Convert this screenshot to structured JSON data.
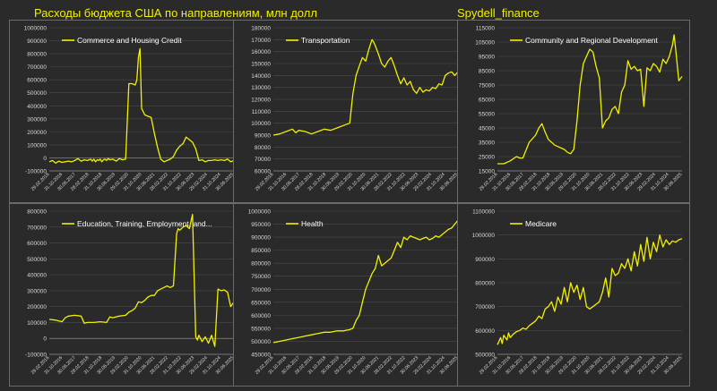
{
  "page": {
    "title": "Расходы бюджета США по направлениям, млн долл",
    "brand": "Spydell_finance"
  },
  "style": {
    "background": "#2a2a2a",
    "line_color": "#f1f100",
    "text_color": "#d8d8d8",
    "grid_color": "#4a4a4a",
    "border_color": "#6b6b6b"
  },
  "chart_data": [
    {
      "type": "line",
      "title": "Commerce and Housing Credit",
      "legend": "top-left",
      "ylim": [
        -100000,
        1000000
      ],
      "yticks": [
        -100000,
        0,
        100000,
        200000,
        300000,
        400000,
        500000,
        600000,
        700000,
        800000,
        900000,
        1000000
      ],
      "xticks": [
        "29.02.2016",
        "31.10.2016",
        "30.06.2017",
        "28.02.2018",
        "31.10.2018",
        "30.06.2019",
        "29.02.2020",
        "31.10.2020",
        "30.06.2021",
        "28.02.2022",
        "31.10.2022",
        "30.06.2023",
        "29.02.2024",
        "31.10.2024",
        "30.06.2025"
      ],
      "x": [
        0,
        2,
        4,
        6,
        8,
        10,
        12,
        14,
        16,
        18,
        20,
        22,
        24,
        26,
        27,
        28,
        29,
        30,
        31,
        32,
        33,
        34,
        35,
        36,
        37,
        38,
        40,
        42,
        44,
        46,
        48,
        50,
        52,
        54,
        55,
        56,
        57,
        58,
        60,
        62,
        64,
        66,
        68,
        70,
        72,
        74,
        76,
        78,
        80,
        82,
        84,
        86,
        88,
        90,
        92,
        94,
        96,
        98,
        100,
        102,
        104,
        106,
        108,
        110,
        112,
        114,
        116
      ],
      "y": [
        -30000,
        -20000,
        -40000,
        -25000,
        -35000,
        -30000,
        -25000,
        -30000,
        -20000,
        -5000,
        -25000,
        -15000,
        -20000,
        -10000,
        -25000,
        -10000,
        -30000,
        -15000,
        -20000,
        -10000,
        -30000,
        -15000,
        -10000,
        -20000,
        -5000,
        -15000,
        -10000,
        -25000,
        -5000,
        -15000,
        -10000,
        570000,
        570000,
        560000,
        600000,
        770000,
        840000,
        380000,
        330000,
        320000,
        310000,
        190000,
        80000,
        -10000,
        -30000,
        -20000,
        -10000,
        10000,
        60000,
        90000,
        110000,
        160000,
        140000,
        120000,
        70000,
        -20000,
        -15000,
        -30000,
        -20000,
        -20000,
        -15000,
        -20000,
        -15000,
        -20000,
        -10000,
        -30000,
        -20000
      ]
    },
    {
      "type": "line",
      "title": "Transportation",
      "legend": "top-left",
      "ylim": [
        60000,
        180000
      ],
      "yticks": [
        60000,
        70000,
        80000,
        90000,
        100000,
        110000,
        120000,
        130000,
        140000,
        150000,
        160000,
        170000,
        180000
      ],
      "xticks": [
        "29.02.2016",
        "31.10.2016",
        "30.06.2017",
        "28.02.2018",
        "31.10.2018",
        "30.06.2019",
        "29.02.2020",
        "31.10.2020",
        "30.06.2021",
        "28.02.2022",
        "31.10.2022",
        "30.06.2023",
        "29.02.2024",
        "31.10.2024",
        "30.06.2025"
      ],
      "x": [
        0,
        4,
        8,
        12,
        14,
        16,
        20,
        24,
        28,
        32,
        36,
        40,
        44,
        48,
        50,
        52,
        54,
        56,
        58,
        60,
        62,
        63,
        64,
        66,
        68,
        70,
        72,
        74,
        76,
        78,
        80,
        82,
        84,
        86,
        88,
        90,
        92,
        94,
        96,
        98,
        100,
        102,
        104,
        106,
        108,
        110,
        112,
        114,
        116
      ],
      "y": [
        90000,
        91000,
        93000,
        95000,
        92000,
        94000,
        93000,
        91000,
        93000,
        95000,
        94000,
        96000,
        98000,
        100000,
        125000,
        140000,
        148000,
        155000,
        152000,
        162000,
        170000,
        168000,
        165000,
        158000,
        150000,
        147000,
        152000,
        155000,
        148000,
        140000,
        133000,
        138000,
        132000,
        135000,
        128000,
        125000,
        130000,
        126000,
        128000,
        127000,
        130000,
        129000,
        133000,
        132000,
        140000,
        142000,
        143000,
        140000,
        143000
      ]
    },
    {
      "type": "line",
      "title": "Community and Regional Development",
      "legend": "top-left",
      "ylim": [
        15000,
        115000
      ],
      "yticks": [
        15000,
        25000,
        35000,
        45000,
        55000,
        65000,
        75000,
        85000,
        95000,
        105000,
        115000
      ],
      "xticks": [
        "29.02.2016",
        "31.10.2016",
        "30.06.2017",
        "28.02.2018",
        "31.10.2018",
        "30.06.2019",
        "29.02.2020",
        "31.10.2020",
        "30.06.2021",
        "28.02.2022",
        "31.10.2022",
        "30.06.2023",
        "29.02.2024",
        "31.10.2024",
        "30.06.2025"
      ],
      "x": [
        0,
        4,
        8,
        12,
        14,
        16,
        20,
        24,
        26,
        28,
        30,
        32,
        34,
        36,
        38,
        40,
        42,
        44,
        46,
        48,
        50,
        52,
        54,
        56,
        58,
        60,
        62,
        64,
        66,
        68,
        70,
        72,
        74,
        76,
        78,
        80,
        82,
        84,
        86,
        88,
        90,
        92,
        94,
        96,
        98,
        100,
        102,
        104,
        106,
        108,
        110,
        111,
        112,
        114,
        116
      ],
      "y": [
        20000,
        20000,
        22000,
        25000,
        24000,
        24000,
        35000,
        40000,
        45000,
        48000,
        42000,
        37000,
        35000,
        33000,
        32000,
        31000,
        30000,
        28000,
        27000,
        30000,
        50000,
        75000,
        90000,
        95000,
        100000,
        98000,
        88000,
        80000,
        45000,
        50000,
        52000,
        58000,
        60000,
        55000,
        70000,
        75000,
        92000,
        86000,
        88000,
        85000,
        86000,
        60000,
        87000,
        85000,
        90000,
        88000,
        84000,
        93000,
        90000,
        95000,
        103000,
        110000,
        100000,
        78000,
        81000
      ]
    },
    {
      "type": "line",
      "title": "Education, Training, Employment, and...",
      "legend": "top-left",
      "ylim": [
        -100000,
        800000
      ],
      "yticks": [
        -100000,
        0,
        100000,
        200000,
        300000,
        400000,
        500000,
        600000,
        700000,
        800000
      ],
      "xticks": [
        "29.02.2016",
        "31.10.2016",
        "30.06.2017",
        "28.02.2018",
        "31.10.2018",
        "30.06.2019",
        "29.02.2020",
        "31.10.2020",
        "30.06.2021",
        "28.02.2022",
        "31.10.2022",
        "30.06.2023",
        "29.02.2024",
        "31.10.2024",
        "30.06.2025"
      ],
      "x": [
        0,
        4,
        8,
        10,
        12,
        16,
        20,
        22,
        24,
        28,
        32,
        36,
        38,
        40,
        44,
        48,
        50,
        52,
        54,
        56,
        58,
        60,
        62,
        64,
        66,
        68,
        70,
        72,
        74,
        76,
        78,
        80,
        81,
        82,
        84,
        86,
        88,
        90,
        92,
        93,
        94,
        96,
        98,
        100,
        102,
        104,
        106,
        108,
        110,
        112,
        114,
        116
      ],
      "y": [
        120000,
        115000,
        105000,
        130000,
        140000,
        145000,
        140000,
        95000,
        100000,
        100000,
        105000,
        100000,
        135000,
        130000,
        140000,
        145000,
        165000,
        175000,
        190000,
        230000,
        225000,
        240000,
        260000,
        270000,
        270000,
        300000,
        310000,
        320000,
        330000,
        320000,
        330000,
        660000,
        690000,
        680000,
        700000,
        710000,
        690000,
        780000,
        10000,
        -10000,
        20000,
        -20000,
        10000,
        -30000,
        20000,
        -50000,
        310000,
        300000,
        305000,
        290000,
        200000,
        230000
      ]
    },
    {
      "type": "line",
      "title": "Health",
      "legend": "top-left",
      "ylim": [
        450000,
        1000000
      ],
      "yticks": [
        450000,
        500000,
        550000,
        600000,
        650000,
        700000,
        750000,
        800000,
        850000,
        900000,
        950000,
        1000000
      ],
      "xticks": [
        "29.02.2016",
        "31.10.2016",
        "30.06.2017",
        "28.02.2018",
        "31.10.2018",
        "30.06.2019",
        "29.02.2020",
        "31.10.2020",
        "30.06.2021",
        "28.02.2022",
        "31.10.2022",
        "30.06.2023",
        "29.02.2024",
        "31.10.2024",
        "30.06.2025"
      ],
      "x": [
        0,
        4,
        8,
        12,
        16,
        20,
        24,
        28,
        32,
        36,
        40,
        44,
        48,
        50,
        52,
        54,
        56,
        58,
        60,
        62,
        64,
        66,
        68,
        70,
        72,
        74,
        76,
        78,
        80,
        82,
        84,
        86,
        88,
        90,
        92,
        94,
        96,
        98,
        100,
        102,
        104,
        106,
        108,
        110,
        112,
        114,
        116
      ],
      "y": [
        495000,
        500000,
        505000,
        510000,
        515000,
        520000,
        525000,
        530000,
        535000,
        535000,
        540000,
        540000,
        545000,
        550000,
        580000,
        600000,
        650000,
        700000,
        730000,
        760000,
        780000,
        830000,
        790000,
        800000,
        810000,
        820000,
        850000,
        880000,
        860000,
        900000,
        890000,
        905000,
        900000,
        895000,
        890000,
        895000,
        900000,
        890000,
        895000,
        905000,
        900000,
        910000,
        920000,
        930000,
        935000,
        950000,
        965000
      ]
    },
    {
      "type": "line",
      "title": "Medicare",
      "legend": "top-left",
      "ylim": [
        500000,
        1100000
      ],
      "yticks": [
        500000,
        600000,
        700000,
        800000,
        900000,
        1000000,
        1100000
      ],
      "xticks": [
        "29.02.2016",
        "31.10.2016",
        "30.06.2017",
        "28.02.2018",
        "31.10.2018",
        "30.06.2019",
        "29.02.2020",
        "31.10.2020",
        "30.06.2021",
        "28.02.2022",
        "31.10.2022",
        "30.06.2023",
        "29.02.2024",
        "31.10.2024",
        "30.06.2025"
      ],
      "x": [
        0,
        2,
        3,
        4,
        6,
        7,
        8,
        10,
        12,
        14,
        16,
        18,
        20,
        22,
        24,
        26,
        28,
        30,
        32,
        34,
        36,
        38,
        40,
        42,
        44,
        46,
        48,
        50,
        52,
        54,
        56,
        58,
        60,
        62,
        64,
        66,
        68,
        70,
        72,
        74,
        76,
        78,
        80,
        82,
        84,
        86,
        88,
        90,
        92,
        94,
        96,
        98,
        100,
        102,
        104,
        106,
        108,
        110,
        112,
        114,
        116
      ],
      "y": [
        540000,
        570000,
        545000,
        580000,
        560000,
        590000,
        570000,
        585000,
        595000,
        600000,
        610000,
        605000,
        620000,
        630000,
        640000,
        660000,
        650000,
        690000,
        700000,
        720000,
        680000,
        740000,
        710000,
        780000,
        720000,
        800000,
        760000,
        790000,
        730000,
        780000,
        700000,
        690000,
        700000,
        710000,
        720000,
        760000,
        820000,
        740000,
        860000,
        830000,
        840000,
        880000,
        860000,
        900000,
        850000,
        930000,
        870000,
        960000,
        890000,
        990000,
        900000,
        970000,
        930000,
        1000000,
        950000,
        980000,
        960000,
        975000,
        970000,
        980000,
        985000
      ]
    }
  ]
}
